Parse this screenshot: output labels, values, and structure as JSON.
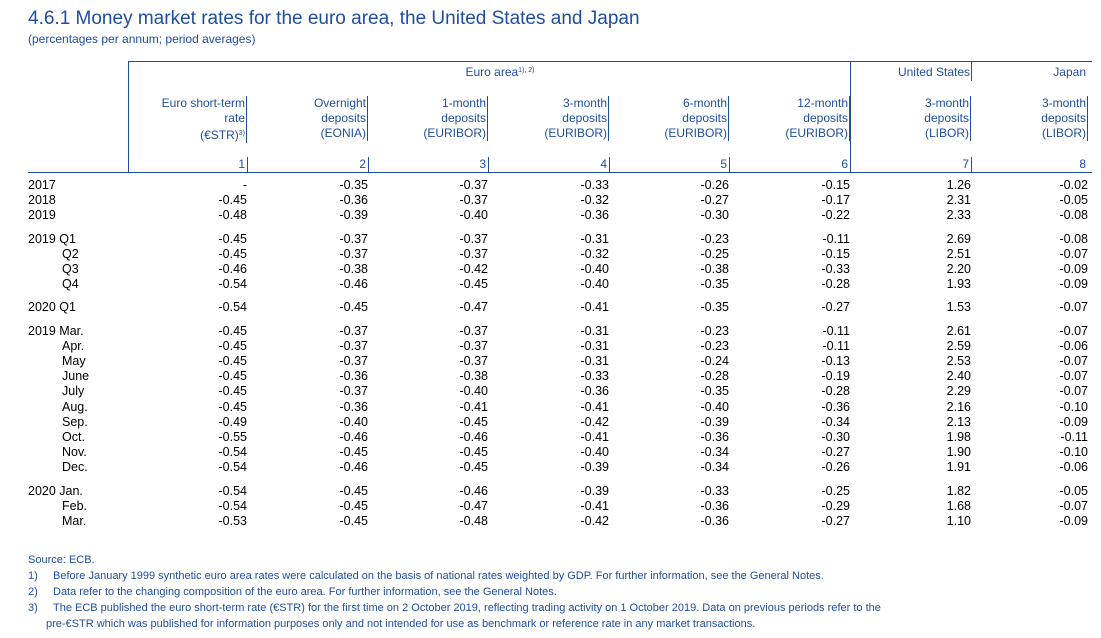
{
  "title": "4.6.1 Money market rates for the euro area, the United States and Japan",
  "subtitle": "(percentages per annum; period averages)",
  "groups": {
    "euro_area": "Euro area",
    "euro_area_fn": "1), 2)",
    "united_states": "United States",
    "japan": "Japan"
  },
  "columns": [
    {
      "l1": "Euro short-term",
      "l2": "rate",
      "l3": "(€STR)",
      "fn": "3)",
      "num": "1"
    },
    {
      "l1": "Overnight",
      "l2": "deposits",
      "l3": "(EONIA)",
      "fn": "",
      "num": "2"
    },
    {
      "l1": "1-month",
      "l2": "deposits",
      "l3": "(EURIBOR)",
      "fn": "",
      "num": "3"
    },
    {
      "l1": "3-month",
      "l2": "deposits",
      "l3": "(EURIBOR)",
      "fn": "",
      "num": "4"
    },
    {
      "l1": "6-month",
      "l2": "deposits",
      "l3": "(EURIBOR)",
      "fn": "",
      "num": "5"
    },
    {
      "l1": "12-month",
      "l2": "deposits",
      "l3": "(EURIBOR)",
      "fn": "",
      "num": "6"
    },
    {
      "l1": "3-month",
      "l2": "deposits",
      "l3": "(LIBOR)",
      "fn": "",
      "num": "7"
    },
    {
      "l1": "3-month",
      "l2": "deposits",
      "l3": "(LIBOR)",
      "fn": "",
      "num": "8"
    }
  ],
  "blocks": [
    {
      "rows": [
        {
          "label": "2017",
          "indent": false,
          "v": [
            "-",
            "-0.35",
            "-0.37",
            "-0.33",
            "-0.26",
            "-0.15",
            "1.26",
            "-0.02"
          ]
        },
        {
          "label": "2018",
          "indent": false,
          "v": [
            "-0.45",
            "-0.36",
            "-0.37",
            "-0.32",
            "-0.27",
            "-0.17",
            "2.31",
            "-0.05"
          ]
        },
        {
          "label": "2019",
          "indent": false,
          "v": [
            "-0.48",
            "-0.39",
            "-0.40",
            "-0.36",
            "-0.30",
            "-0.22",
            "2.33",
            "-0.08"
          ]
        }
      ]
    },
    {
      "rows": [
        {
          "label": "2019 Q1",
          "indent": false,
          "v": [
            "-0.45",
            "-0.37",
            "-0.37",
            "-0.31",
            "-0.23",
            "-0.11",
            "2.69",
            "-0.08"
          ]
        },
        {
          "label": "Q2",
          "indent": true,
          "v": [
            "-0.45",
            "-0.37",
            "-0.37",
            "-0.32",
            "-0.25",
            "-0.15",
            "2.51",
            "-0.07"
          ]
        },
        {
          "label": "Q3",
          "indent": true,
          "v": [
            "-0.46",
            "-0.38",
            "-0.42",
            "-0.40",
            "-0.38",
            "-0.33",
            "2.20",
            "-0.09"
          ]
        },
        {
          "label": "Q4",
          "indent": true,
          "v": [
            "-0.54",
            "-0.46",
            "-0.45",
            "-0.40",
            "-0.35",
            "-0.28",
            "1.93",
            "-0.09"
          ]
        }
      ]
    },
    {
      "rows": [
        {
          "label": "2020 Q1",
          "indent": false,
          "v": [
            "-0.54",
            "-0.45",
            "-0.47",
            "-0.41",
            "-0.35",
            "-0.27",
            "1.53",
            "-0.07"
          ]
        }
      ]
    },
    {
      "rows": [
        {
          "label": "2019 Mar.",
          "indent": false,
          "v": [
            "-0.45",
            "-0.37",
            "-0.37",
            "-0.31",
            "-0.23",
            "-0.11",
            "2.61",
            "-0.07"
          ]
        },
        {
          "label": "Apr.",
          "indent": true,
          "v": [
            "-0.45",
            "-0.37",
            "-0.37",
            "-0.31",
            "-0.23",
            "-0.11",
            "2.59",
            "-0.06"
          ]
        },
        {
          "label": "May",
          "indent": true,
          "v": [
            "-0.45",
            "-0.37",
            "-0.37",
            "-0.31",
            "-0.24",
            "-0.13",
            "2.53",
            "-0.07"
          ]
        },
        {
          "label": "June",
          "indent": true,
          "v": [
            "-0.45",
            "-0.36",
            "-0.38",
            "-0.33",
            "-0.28",
            "-0.19",
            "2.40",
            "-0.07"
          ]
        },
        {
          "label": "July",
          "indent": true,
          "v": [
            "-0.45",
            "-0.37",
            "-0.40",
            "-0.36",
            "-0.35",
            "-0.28",
            "2.29",
            "-0.07"
          ]
        },
        {
          "label": "Aug.",
          "indent": true,
          "v": [
            "-0.45",
            "-0.36",
            "-0.41",
            "-0.41",
            "-0.40",
            "-0.36",
            "2.16",
            "-0.10"
          ]
        },
        {
          "label": "Sep.",
          "indent": true,
          "v": [
            "-0.49",
            "-0.40",
            "-0.45",
            "-0.42",
            "-0.39",
            "-0.34",
            "2.13",
            "-0.09"
          ]
        },
        {
          "label": "Oct.",
          "indent": true,
          "v": [
            "-0.55",
            "-0.46",
            "-0.46",
            "-0.41",
            "-0.36",
            "-0.30",
            "1.98",
            "-0.11"
          ]
        },
        {
          "label": "Nov.",
          "indent": true,
          "v": [
            "-0.54",
            "-0.45",
            "-0.45",
            "-0.40",
            "-0.34",
            "-0.27",
            "1.90",
            "-0.10"
          ]
        },
        {
          "label": "Dec.",
          "indent": true,
          "v": [
            "-0.54",
            "-0.46",
            "-0.45",
            "-0.39",
            "-0.34",
            "-0.26",
            "1.91",
            "-0.06"
          ]
        }
      ]
    },
    {
      "rows": [
        {
          "label": "2020 Jan.",
          "indent": false,
          "v": [
            "-0.54",
            "-0.45",
            "-0.46",
            "-0.39",
            "-0.33",
            "-0.25",
            "1.82",
            "-0.05"
          ]
        },
        {
          "label": "Feb.",
          "indent": true,
          "v": [
            "-0.54",
            "-0.45",
            "-0.47",
            "-0.41",
            "-0.36",
            "-0.29",
            "1.68",
            "-0.07"
          ]
        },
        {
          "label": "Mar.",
          "indent": true,
          "v": [
            "-0.53",
            "-0.45",
            "-0.48",
            "-0.42",
            "-0.36",
            "-0.27",
            "1.10",
            "-0.09"
          ]
        }
      ]
    }
  ],
  "notes": {
    "source": "Source: ECB.",
    "items": [
      {
        "num": "1)",
        "text": "Before January 1999 synthetic euro area rates were calculated on the basis of national rates weighted by GDP. For further information, see the General Notes."
      },
      {
        "num": "2)",
        "text": "Data refer to the changing composition of the euro area. For further information, see the General Notes."
      },
      {
        "num": "3)",
        "text": "The ECB published the euro short-term rate (€STR) for the first time on 2 October 2019, reflecting trading activity on 1 October 2019. Data on previous periods refer to the"
      }
    ],
    "continuation": "pre-€STR which was published for information purposes only and not intended for use as benchmark or reference rate in any market transactions."
  }
}
